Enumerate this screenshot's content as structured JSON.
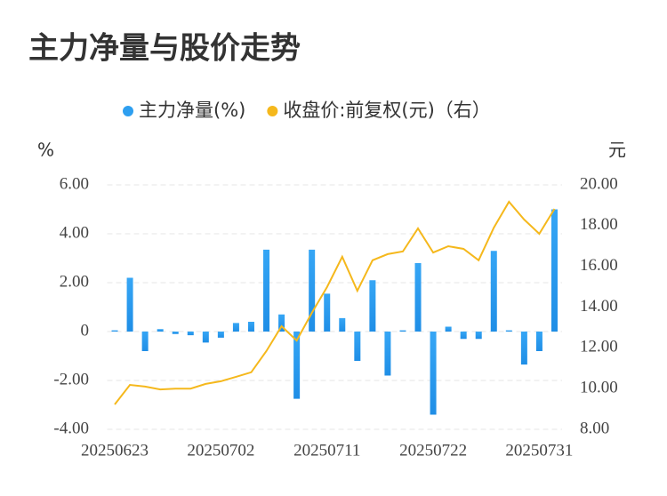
{
  "chart_data": {
    "type": "bar-line",
    "title": "主力净量与股价走势",
    "ylabel": "%",
    "y2label": "元",
    "categories": [
      "20250623",
      null,
      null,
      null,
      null,
      null,
      null,
      "20250702",
      null,
      null,
      null,
      null,
      null,
      null,
      "20250711",
      null,
      null,
      null,
      null,
      null,
      null,
      "20250722",
      null,
      null,
      null,
      null,
      null,
      null,
      "20250731",
      null
    ],
    "series": [
      {
        "name": "主力净量(%)",
        "type": "bar",
        "color": "#2e9ff0",
        "values": [
          0.05,
          2.2,
          -0.8,
          0.1,
          -0.1,
          -0.15,
          -0.45,
          -0.25,
          0.35,
          0.4,
          3.35,
          0.7,
          -2.75,
          3.35,
          1.55,
          0.55,
          -1.2,
          2.1,
          -1.8,
          0.05,
          2.8,
          -3.4,
          0.2,
          -0.3,
          -0.3,
          3.3,
          0.05,
          -1.35,
          -0.8,
          5.0
        ]
      },
      {
        "name": "收盘价:前复权(元)（右）",
        "type": "line",
        "axis": "y2",
        "color": "#f5b81c",
        "values": [
          9.22,
          10.18,
          10.1,
          9.96,
          10.0,
          10.0,
          10.23,
          10.36,
          10.58,
          10.8,
          11.84,
          13.06,
          12.36,
          13.72,
          14.98,
          16.47,
          14.8,
          16.3,
          16.6,
          16.73,
          17.86,
          16.68,
          16.99,
          16.86,
          16.3,
          17.9,
          19.17,
          18.3,
          17.6,
          18.82
        ]
      }
    ],
    "ylim": [
      -4,
      6
    ],
    "yticks": [
      {
        "value": -4,
        "label": "-4.00"
      },
      {
        "value": -2,
        "label": "-2.00"
      },
      0,
      {
        "value": 2,
        "label": "2.00"
      },
      {
        "value": 4,
        "label": "4.00"
      },
      {
        "value": 6,
        "label": "6.00"
      }
    ],
    "y2lim": [
      8,
      20
    ],
    "y2ticks": [
      {
        "value": 8,
        "label": "8.00"
      },
      {
        "value": 10,
        "label": "10.00"
      },
      {
        "value": 12,
        "label": "12.00"
      },
      {
        "value": 14,
        "label": "14.00"
      },
      {
        "value": 16,
        "label": "16.00"
      },
      {
        "value": 18,
        "label": "18.00"
      },
      {
        "value": 20,
        "label": "20.00"
      }
    ],
    "grid": true,
    "legend": "top"
  }
}
